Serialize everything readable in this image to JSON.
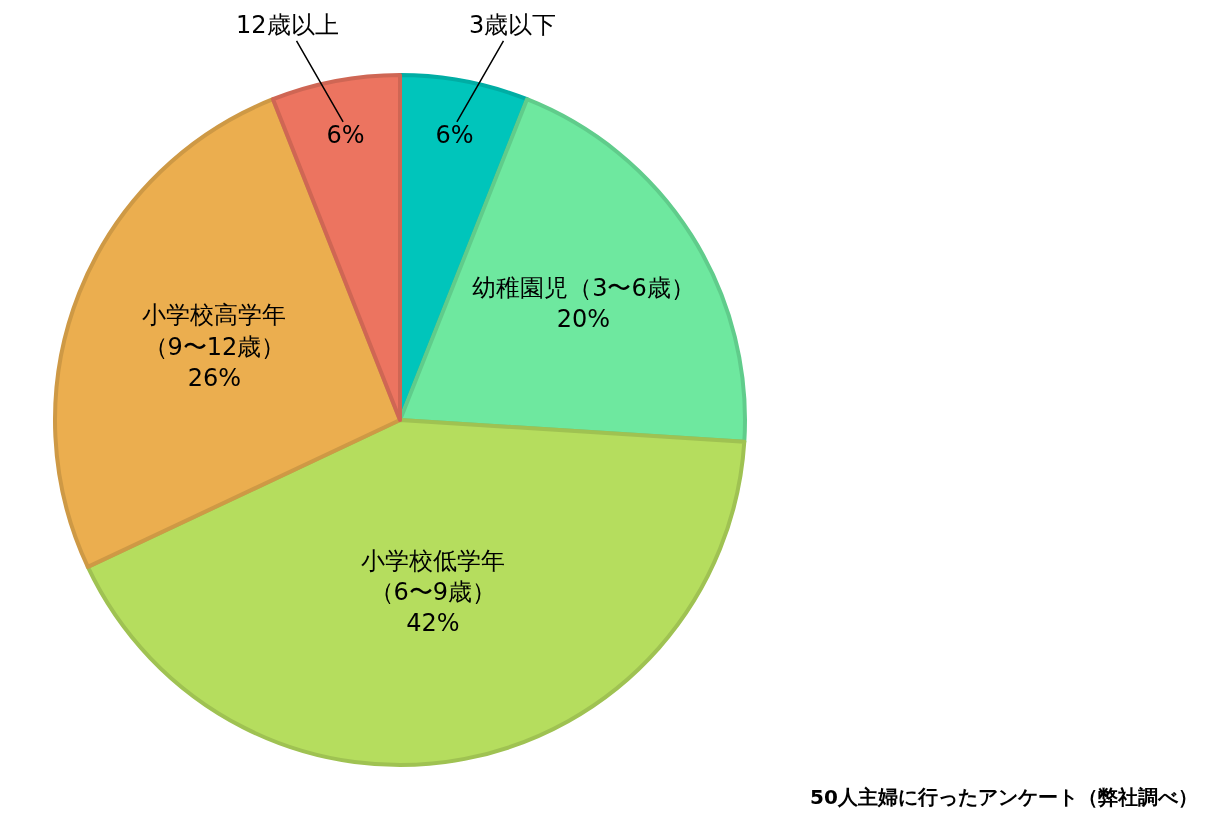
{
  "chart_data": {
    "type": "pie",
    "categories": [
      "3歳以下",
      "幼稚園児（3〜6歳）",
      "小学校低学年（6〜9歳）",
      "小学校高学年（9〜12歳）",
      "12歳以上"
    ],
    "values": [
      6,
      20,
      42,
      26,
      6
    ],
    "colors": [
      "#00c5bb",
      "#6ee89f",
      "#b5dd5e",
      "#ebae4f",
      "#ec7460"
    ],
    "value_labels": [
      "6%",
      "20%",
      "42%",
      "26%",
      "6%"
    ],
    "legend": false,
    "annotations": [
      "50人主婦に行ったアンケート（弊社調べ）"
    ]
  }
}
